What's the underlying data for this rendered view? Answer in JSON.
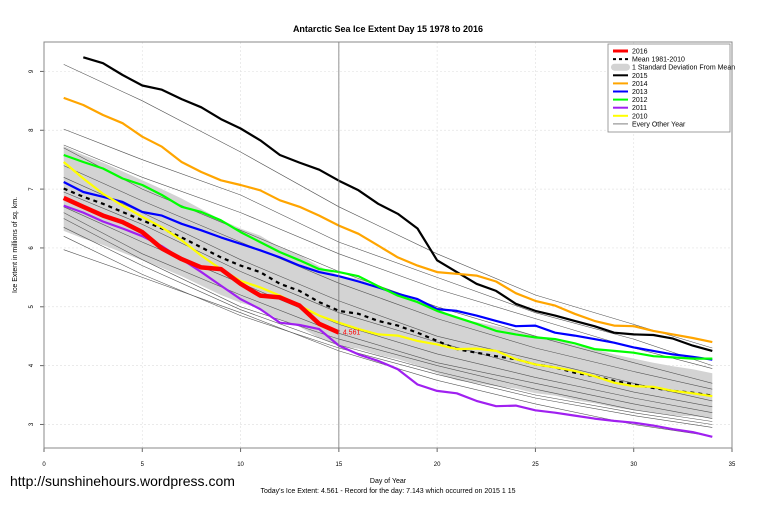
{
  "chart_data": {
    "type": "line",
    "title": "Antarctic Sea Ice Extent Day 15 1978 to 2016",
    "xlabel": "Day of Year",
    "ylabel": "Ice Extent in millions of sq. km.",
    "xlim": [
      0,
      35
    ],
    "ylim": [
      2.6,
      9.5
    ],
    "xticks": [
      0,
      5,
      10,
      15,
      20,
      25,
      30,
      35
    ],
    "yticks": [
      3,
      4,
      5,
      6,
      7,
      8,
      9
    ],
    "grid": true,
    "legend_position": "top-right",
    "marker_day": 15,
    "current_label": "4.561",
    "footer": "Today's Ice Extent: 4.561  - Record for the day: 7.143 which occurred on 2015 1 15",
    "watermark": "http://sunshinehours.wordpress.com",
    "legend": [
      {
        "label": "2016",
        "color": "#ff0000",
        "style": "thick"
      },
      {
        "label": "Mean 1981-2010",
        "color": "#000000",
        "style": "dashed"
      },
      {
        "label": "1 Standard Deviation From Mean",
        "color": "#d3d3d3",
        "style": "band"
      },
      {
        "label": "2015",
        "color": "#000000",
        "style": "solid"
      },
      {
        "label": "2014",
        "color": "#ffa500",
        "style": "solid"
      },
      {
        "label": "2013",
        "color": "#0000ff",
        "style": "solid"
      },
      {
        "label": "2012",
        "color": "#00ff00",
        "style": "solid"
      },
      {
        "label": "2011",
        "color": "#a020f0",
        "style": "solid"
      },
      {
        "label": "2010",
        "color": "#ffff00",
        "style": "solid"
      },
      {
        "label": "Every Other Year",
        "color": "#808080",
        "style": "thin"
      }
    ],
    "mean": [
      7.01,
      6.87,
      6.75,
      6.61,
      6.47,
      6.33,
      6.18,
      6.01,
      5.84,
      5.7,
      5.59,
      5.39,
      5.27,
      5.08,
      4.93,
      4.88,
      4.76,
      4.68,
      4.56,
      4.42,
      4.28,
      4.22,
      4.16,
      4.11,
      4.02,
      3.97,
      3.88,
      3.82,
      3.74,
      3.68,
      3.62,
      3.57,
      3.54,
      3.49
    ],
    "sd": [
      0.72,
      0.71,
      0.7,
      0.69,
      0.68,
      0.67,
      0.66,
      0.65,
      0.64,
      0.63,
      0.62,
      0.62,
      0.61,
      0.61,
      0.6,
      0.59,
      0.58,
      0.57,
      0.56,
      0.55,
      0.53,
      0.52,
      0.51,
      0.5,
      0.49,
      0.48,
      0.47,
      0.46,
      0.45,
      0.44,
      0.43,
      0.42,
      0.4,
      0.38
    ],
    "other_years": {
      "x": [
        1,
        5,
        10,
        15,
        20,
        25,
        30,
        34
      ],
      "lines": [
        [
          9.12,
          8.5,
          7.63,
          6.7,
          5.9,
          5.2,
          4.7,
          4.3
        ],
        [
          8.02,
          7.5,
          6.9,
          6.1,
          5.5,
          4.9,
          4.45,
          4.0
        ],
        [
          7.75,
          7.2,
          6.6,
          5.9,
          5.3,
          4.8,
          4.3,
          3.95
        ],
        [
          7.7,
          7.0,
          6.3,
          5.6,
          5.0,
          4.5,
          4.05,
          3.7
        ],
        [
          7.4,
          6.8,
          6.1,
          5.4,
          4.8,
          4.3,
          3.9,
          3.6
        ],
        [
          7.2,
          6.6,
          5.8,
          5.1,
          4.5,
          4.1,
          3.7,
          3.4
        ],
        [
          6.95,
          6.4,
          5.6,
          4.9,
          4.4,
          3.95,
          3.55,
          3.3
        ],
        [
          6.7,
          6.1,
          5.4,
          4.7,
          4.2,
          3.8,
          3.45,
          3.2
        ],
        [
          6.6,
          5.9,
          5.2,
          4.55,
          4.05,
          3.7,
          3.35,
          3.1
        ],
        [
          6.5,
          5.8,
          5.0,
          4.45,
          4.0,
          3.6,
          3.25,
          3.05
        ],
        [
          6.35,
          5.7,
          4.95,
          4.35,
          3.9,
          3.5,
          3.2,
          3.0
        ],
        [
          6.2,
          5.55,
          4.85,
          4.3,
          3.85,
          3.45,
          3.15,
          2.95
        ],
        [
          5.97,
          5.5,
          4.9,
          4.25,
          3.75,
          3.35,
          3.0,
          2.8
        ]
      ]
    },
    "series": [
      {
        "name": "2015",
        "color": "#000000",
        "start_day": 2,
        "values": [
          9.24,
          9.14,
          8.94,
          8.76,
          8.69,
          8.53,
          8.39,
          8.19,
          8.03,
          7.83,
          7.58,
          7.45,
          7.33,
          7.143,
          6.98,
          6.75,
          6.58,
          6.33,
          5.79,
          5.59,
          5.39,
          5.27,
          5.05,
          4.93,
          4.85,
          4.76,
          4.67,
          4.56,
          4.53,
          4.52,
          4.46,
          4.34,
          4.25
        ]
      },
      {
        "name": "2014",
        "color": "#ffa500",
        "start_day": 1,
        "values": [
          8.55,
          8.43,
          8.26,
          8.12,
          7.89,
          7.72,
          7.46,
          7.29,
          7.15,
          7.07,
          6.98,
          6.81,
          6.7,
          6.55,
          6.38,
          6.24,
          6.04,
          5.84,
          5.7,
          5.59,
          5.56,
          5.53,
          5.43,
          5.23,
          5.1,
          5.02,
          4.88,
          4.76,
          4.68,
          4.67,
          4.59,
          4.53,
          4.47,
          4.4
        ]
      },
      {
        "name": "2013",
        "color": "#0000ff",
        "start_day": 1,
        "values": [
          7.12,
          6.95,
          6.87,
          6.78,
          6.61,
          6.55,
          6.41,
          6.3,
          6.18,
          6.07,
          5.96,
          5.84,
          5.7,
          5.59,
          5.52,
          5.43,
          5.33,
          5.22,
          5.13,
          4.96,
          4.93,
          4.85,
          4.76,
          4.67,
          4.68,
          4.56,
          4.51,
          4.45,
          4.39,
          4.31,
          4.25,
          4.19,
          4.15,
          4.1
        ]
      },
      {
        "name": "2012",
        "color": "#00ff00",
        "start_day": 1,
        "values": [
          7.58,
          7.46,
          7.35,
          7.18,
          7.07,
          6.9,
          6.7,
          6.61,
          6.47,
          6.27,
          6.1,
          5.93,
          5.79,
          5.64,
          5.59,
          5.52,
          5.35,
          5.19,
          5.08,
          4.93,
          4.82,
          4.71,
          4.59,
          4.53,
          4.48,
          4.45,
          4.38,
          4.28,
          4.25,
          4.22,
          4.16,
          4.14,
          4.12,
          4.12
        ]
      },
      {
        "name": "2011",
        "color": "#a020f0",
        "start_day": 1,
        "values": [
          6.72,
          6.6,
          6.45,
          6.33,
          6.2,
          6.03,
          5.81,
          5.59,
          5.36,
          5.13,
          4.96,
          4.73,
          4.69,
          4.62,
          4.34,
          4.19,
          4.08,
          3.94,
          3.68,
          3.57,
          3.53,
          3.4,
          3.31,
          3.32,
          3.24,
          3.2,
          3.15,
          3.1,
          3.06,
          3.03,
          2.98,
          2.92,
          2.87,
          2.79
        ]
      },
      {
        "name": "2010",
        "color": "#ffff00",
        "start_day": 1,
        "values": [
          7.46,
          7.18,
          6.92,
          6.72,
          6.53,
          6.35,
          6.13,
          5.87,
          5.64,
          5.44,
          5.33,
          5.19,
          5.02,
          4.85,
          4.73,
          4.62,
          4.53,
          4.51,
          4.42,
          4.36,
          4.28,
          4.29,
          4.25,
          4.11,
          4.02,
          3.97,
          3.91,
          3.82,
          3.71,
          3.65,
          3.64,
          3.57,
          3.53,
          3.48
        ]
      },
      {
        "name": "2016",
        "color": "#ff0000",
        "start_day": 1,
        "values": [
          6.85,
          6.7,
          6.55,
          6.44,
          6.27,
          5.99,
          5.81,
          5.67,
          5.64,
          5.39,
          5.19,
          5.16,
          5.02,
          4.71,
          4.561
        ]
      }
    ]
  }
}
